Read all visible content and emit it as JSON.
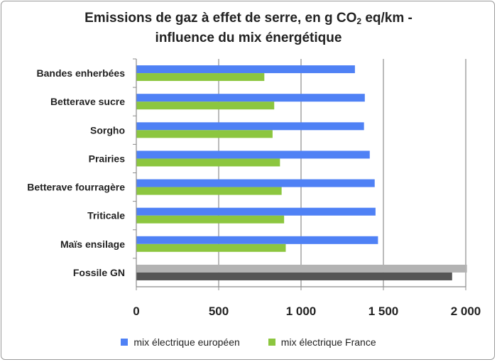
{
  "chart_data": {
    "type": "bar",
    "orientation": "horizontal",
    "title_line1_before": "Emissions de gaz à effet de serre, en g CO",
    "title_sub": "2",
    "title_line1_after": " eq/km -",
    "title_line2": "influence du mix énergétique",
    "categories": [
      "Bandes enherbées",
      "Betterave sucre",
      "Sorgho",
      "Prairies",
      "Betterave fourragère",
      "Triticale",
      "Maïs ensilage",
      "Fossile GN"
    ],
    "series": [
      {
        "name": "mix électrique européen",
        "color": "#4f81f5",
        "values": [
          1325,
          1385,
          1380,
          1415,
          1445,
          1450,
          1465,
          2005
        ]
      },
      {
        "name": "mix électrique France",
        "color": "#8cc63f",
        "values": [
          775,
          835,
          825,
          870,
          880,
          895,
          905,
          1915
        ]
      }
    ],
    "special_colors": {
      "Fossile GN": [
        "#b3b3b3",
        "#555555"
      ]
    },
    "xlim": [
      0,
      2000
    ],
    "xticks": [
      0,
      500,
      1000,
      1500,
      2000
    ],
    "xtick_labels": [
      "0",
      "500",
      "1 000",
      "1 500",
      "2 000"
    ],
    "grid": "vertical",
    "legend_position": "bottom"
  }
}
